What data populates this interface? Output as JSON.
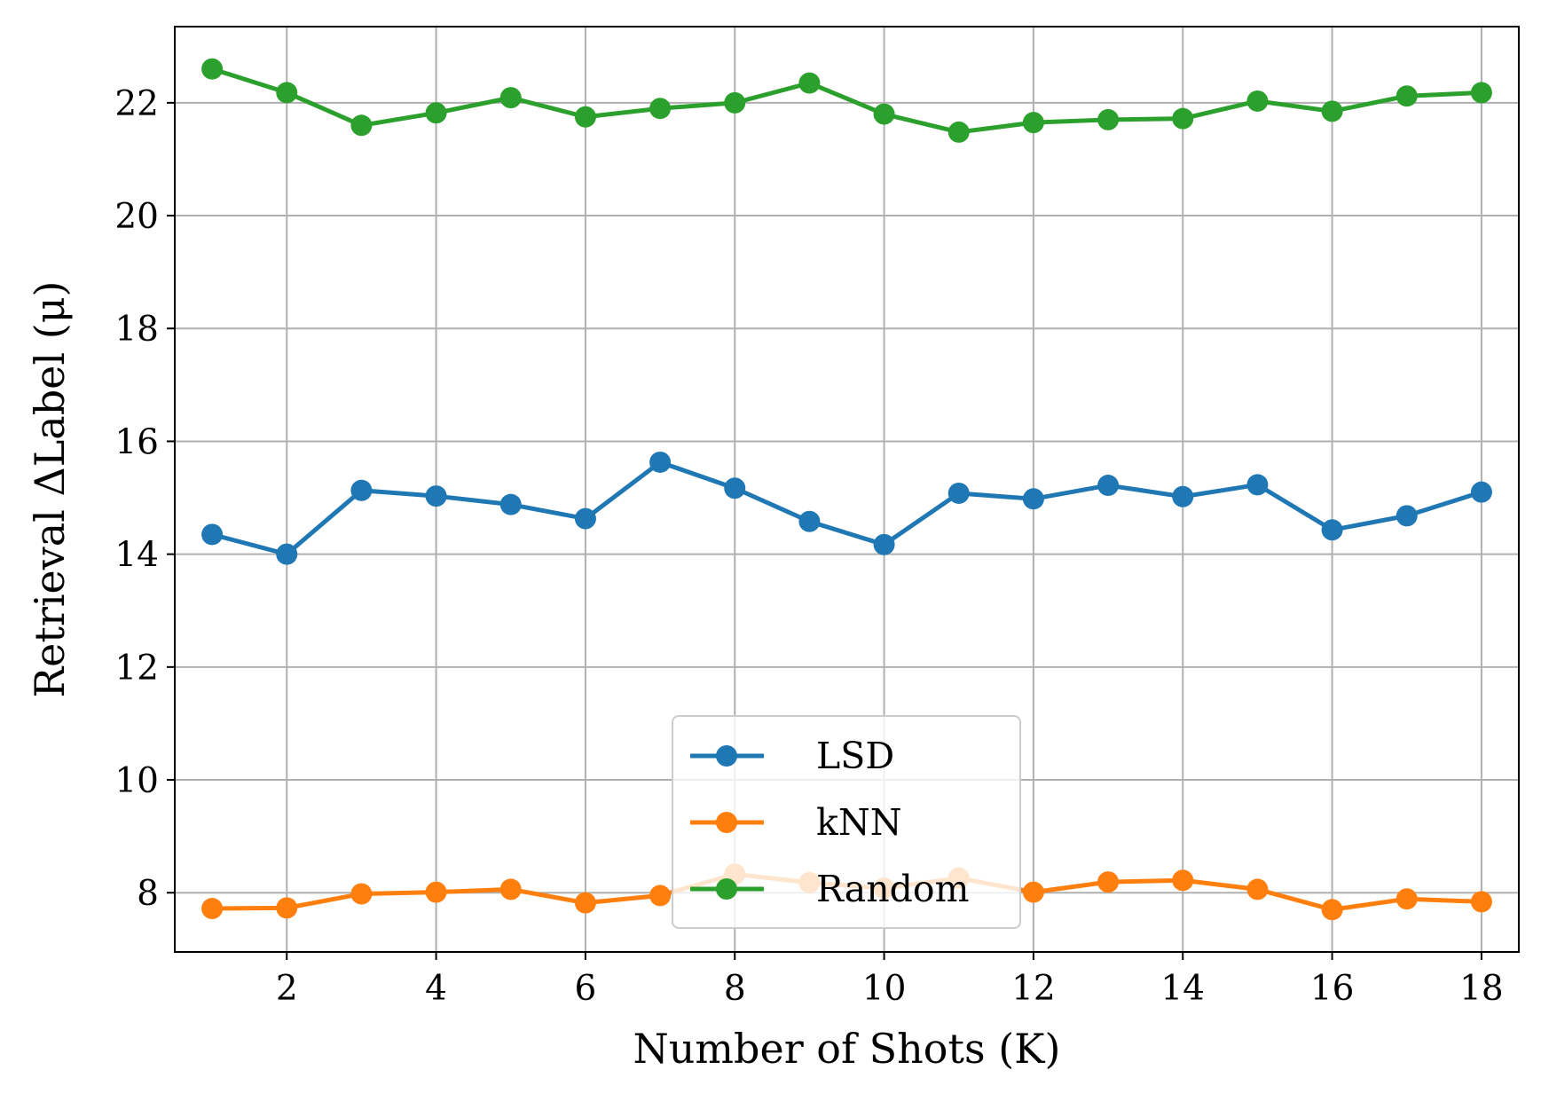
{
  "chart_data": {
    "type": "line",
    "title": "",
    "xlabel": "Number of Shots (K)",
    "ylabel": "Retrieval ΔLabel (μ)",
    "x": [
      1,
      2,
      3,
      4,
      5,
      6,
      7,
      8,
      9,
      10,
      11,
      12,
      13,
      14,
      15,
      16,
      17,
      18
    ],
    "xlim": [
      0.5,
      18.5
    ],
    "ylim": [
      6.95,
      23.35
    ],
    "xticks": [
      2,
      4,
      6,
      8,
      10,
      12,
      14,
      16,
      18
    ],
    "yticks": [
      8,
      10,
      12,
      14,
      16,
      18,
      20,
      22
    ],
    "grid": true,
    "legend_position": "lower-center",
    "series": [
      {
        "name": "LSD",
        "color": "#1f77b4",
        "values": [
          14.35,
          14.0,
          15.13,
          15.03,
          14.88,
          14.63,
          15.63,
          15.17,
          14.58,
          14.17,
          15.08,
          14.98,
          15.22,
          15.02,
          15.23,
          14.43,
          14.68,
          15.1
        ]
      },
      {
        "name": "kNN",
        "color": "#ff7f0e",
        "values": [
          7.72,
          7.73,
          7.98,
          8.01,
          8.06,
          7.82,
          7.95,
          8.33,
          8.18,
          8.08,
          8.26,
          8.01,
          8.19,
          8.22,
          8.06,
          7.7,
          7.89,
          7.84
        ]
      },
      {
        "name": "Random",
        "color": "#2ca02c",
        "values": [
          22.6,
          22.18,
          21.6,
          21.82,
          22.09,
          21.75,
          21.9,
          22.0,
          22.35,
          21.8,
          21.48,
          21.65,
          21.7,
          21.72,
          22.03,
          21.85,
          22.12,
          22.18
        ]
      }
    ]
  }
}
